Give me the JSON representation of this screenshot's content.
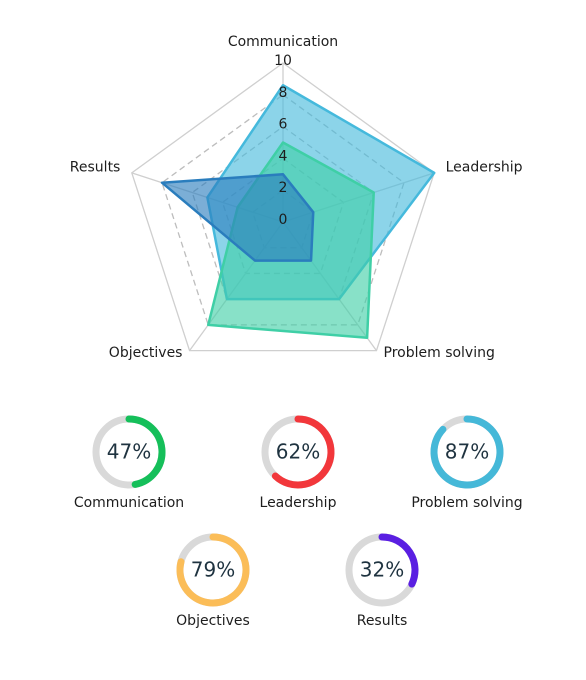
{
  "chart_data": [
    {
      "type": "radar",
      "categories": [
        "Communication",
        "Leadership",
        "Problem solving",
        "Objectives",
        "Results"
      ],
      "rlim": [
        0,
        10
      ],
      "rticks": [
        0,
        2,
        4,
        6,
        8,
        10
      ],
      "grid": true,
      "series": [
        {
          "color": "#45b9dc",
          "values": [
            8.6,
            10,
            6,
            6,
            5
          ]
        },
        {
          "color": "#3fcfa6",
          "values": [
            5,
            6,
            9,
            8,
            3
          ]
        },
        {
          "color": "#2a7dbd",
          "values": [
            3,
            2,
            3,
            3,
            8
          ]
        }
      ]
    },
    {
      "type": "donut",
      "categories": [
        "Communication",
        "Leadership",
        "Problem solving",
        "Objectives",
        "Results"
      ],
      "values": [
        47,
        62,
        87,
        79,
        32
      ],
      "value_labels": [
        "47%",
        "62%",
        "87%",
        "79%",
        "32%"
      ],
      "colors": [
        "#15bf5a",
        "#f2373b",
        "#45b8d8",
        "#fbbd58",
        "#5a1fe2"
      ],
      "ylim": [
        0,
        100
      ]
    }
  ]
}
